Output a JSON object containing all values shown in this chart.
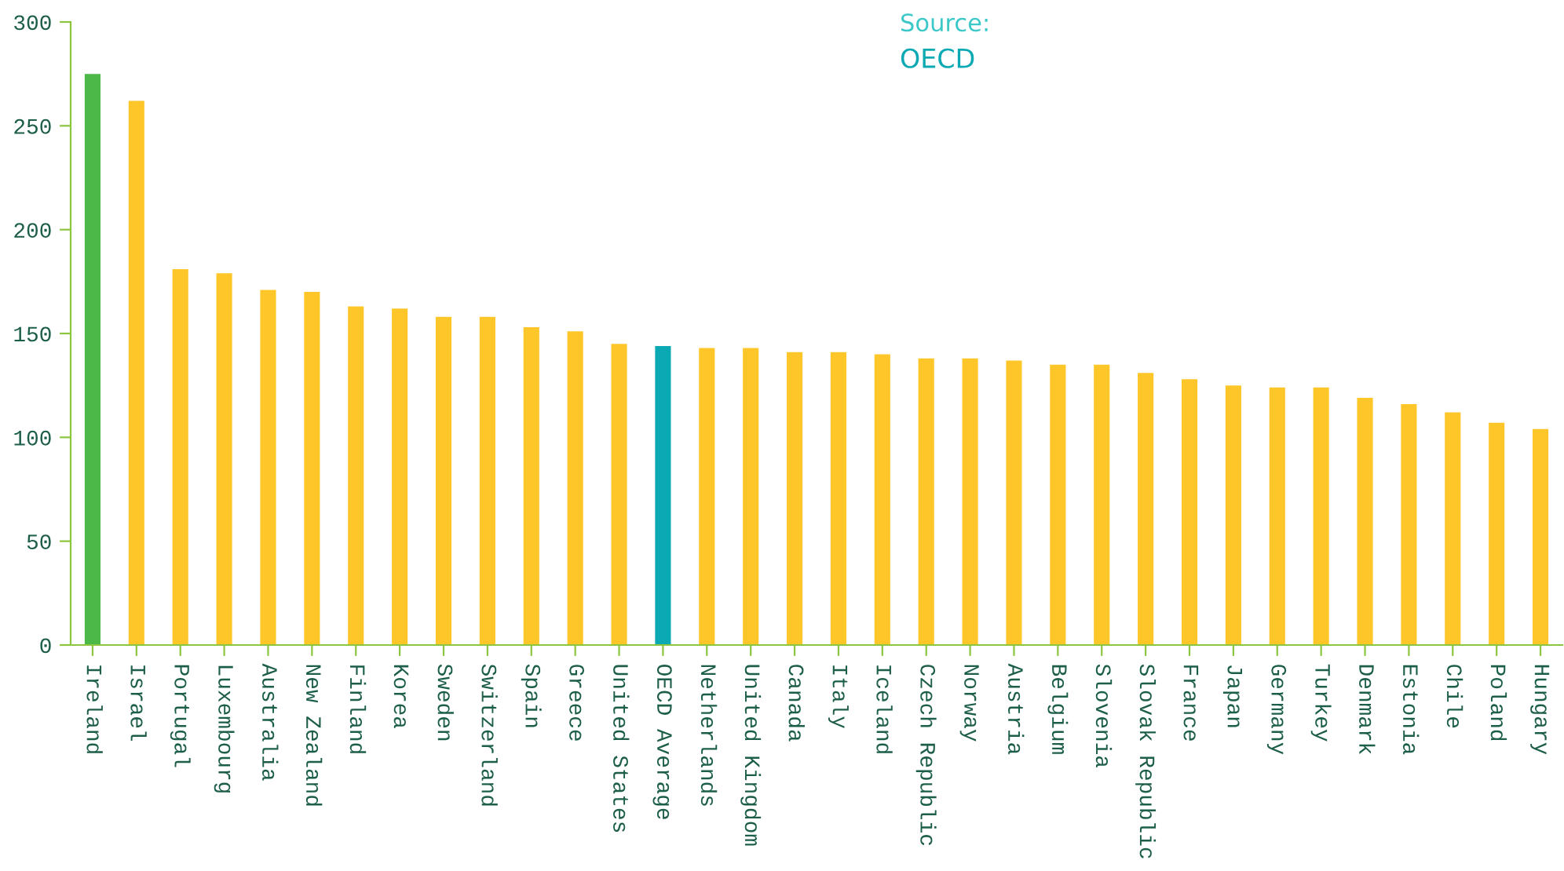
{
  "chart_data": {
    "type": "bar",
    "categories": [
      "Ireland",
      "Israel",
      "Portugal",
      "Luxembourg",
      "Australia",
      "New Zealand",
      "Finland",
      "Korea",
      "Sweden",
      "Switzerland",
      "Spain",
      "Greece",
      "United States",
      "OECD Average",
      "Netherlands",
      "United Kingdom",
      "Canada",
      "Italy",
      "Iceland",
      "Czech Republic",
      "Norway",
      "Austria",
      "Belgium",
      "Slovenia",
      "Slovak Republic",
      "France",
      "Japan",
      "Germany",
      "Turkey",
      "Denmark",
      "Estonia",
      "Chile",
      "Poland",
      "Hungary"
    ],
    "values": [
      275,
      262,
      181,
      179,
      171,
      170,
      163,
      162,
      158,
      158,
      153,
      151,
      145,
      144,
      143,
      143,
      141,
      141,
      140,
      138,
      138,
      137,
      135,
      135,
      131,
      128,
      125,
      124,
      124,
      119,
      116,
      112,
      107,
      104
    ],
    "colors": [
      "#4cb848",
      "#ffc629",
      "#ffc629",
      "#ffc629",
      "#ffc629",
      "#ffc629",
      "#ffc629",
      "#ffc629",
      "#ffc629",
      "#ffc629",
      "#ffc629",
      "#ffc629",
      "#ffc629",
      "#0aa9b4",
      "#ffc629",
      "#ffc629",
      "#ffc629",
      "#ffc629",
      "#ffc629",
      "#ffc629",
      "#ffc629",
      "#ffc629",
      "#ffc629",
      "#ffc629",
      "#ffc629",
      "#ffc629",
      "#ffc629",
      "#ffc629",
      "#ffc629",
      "#ffc629",
      "#ffc629",
      "#ffc629",
      "#ffc629",
      "#ffc629"
    ],
    "ylim": [
      0,
      300
    ],
    "yticks": [
      0,
      50,
      100,
      150,
      200,
      250,
      300
    ],
    "annotations": [
      "Source:",
      "OECD"
    ],
    "grid": false,
    "legend": false
  }
}
